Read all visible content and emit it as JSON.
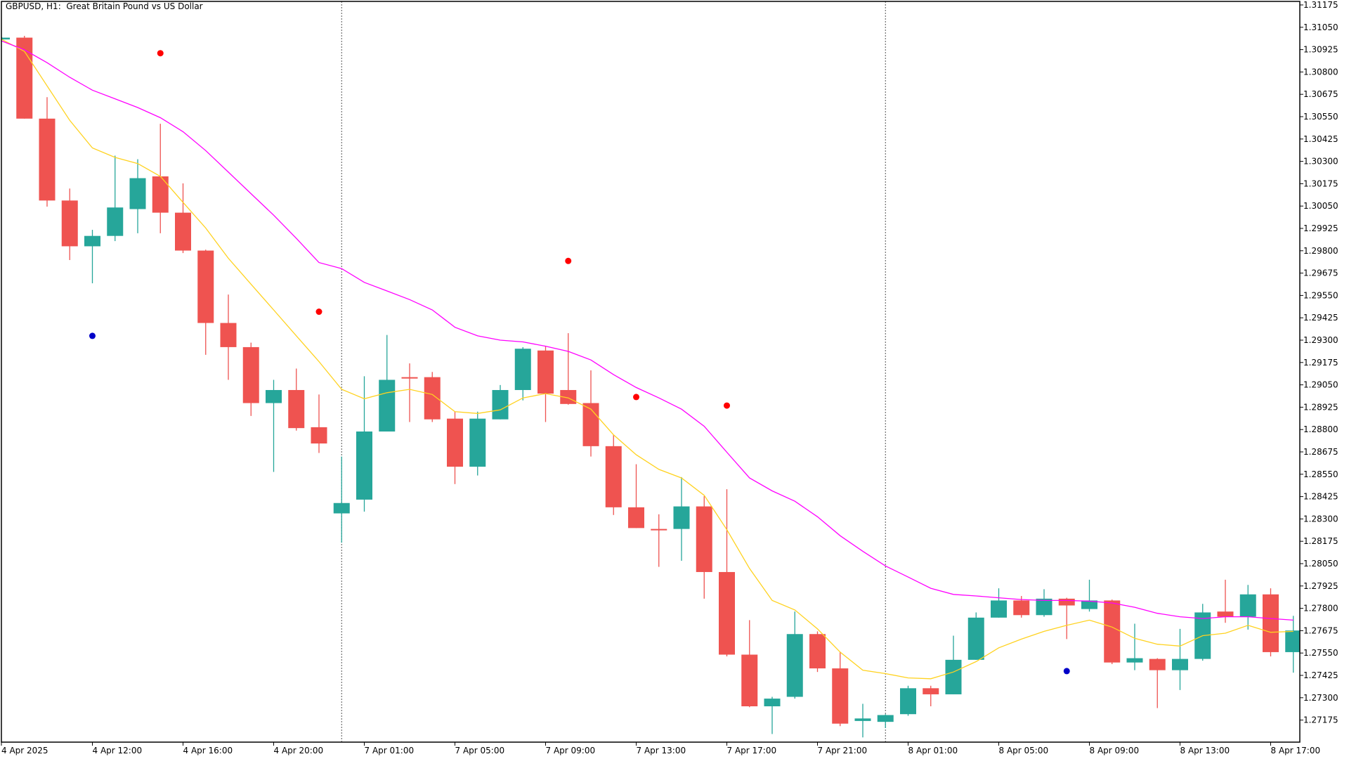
{
  "header": {
    "title": "GBPUSD, H1:  Great Britain Pound vs US Dollar"
  },
  "colors": {
    "bull": "#26a69a",
    "bear": "#ef5350",
    "ma_fast": "#ffd21f",
    "ma_slow": "#ff00ff",
    "dot_red": "#ff0000",
    "dot_blue": "#0000c8",
    "separator": "#555555",
    "axis": "#000000"
  },
  "chart_data": {
    "type": "candlestick",
    "title": "GBPUSD, H1:  Great Britain Pound vs US Dollar",
    "ylim": [
      1.2706,
      1.312
    ],
    "y_ticks": [
      "1.31175",
      "1.31050",
      "1.30925",
      "1.30800",
      "1.30675",
      "1.30550",
      "1.30425",
      "1.30300",
      "1.30175",
      "1.30050",
      "1.29925",
      "1.29800",
      "1.29675",
      "1.29550",
      "1.29425",
      "1.29300",
      "1.29175",
      "1.29050",
      "1.28925",
      "1.28800",
      "1.28675",
      "1.28550",
      "1.28425",
      "1.28300",
      "1.28175",
      "1.28050",
      "1.27925",
      "1.27800",
      "1.27675",
      "1.27550",
      "1.27425",
      "1.27300",
      "1.27175"
    ],
    "x_ticks": [
      {
        "bar": 0,
        "label": "4 Apr 2025"
      },
      {
        "bar": 4,
        "label": "4 Apr 12:00"
      },
      {
        "bar": 8,
        "label": "4 Apr 16:00"
      },
      {
        "bar": 12,
        "label": "4 Apr 20:00"
      },
      {
        "bar": 16,
        "label": "7 Apr 01:00"
      },
      {
        "bar": 20,
        "label": "7 Apr 05:00"
      },
      {
        "bar": 24,
        "label": "7 Apr 09:00"
      },
      {
        "bar": 28,
        "label": "7 Apr 13:00"
      },
      {
        "bar": 32,
        "label": "7 Apr 17:00"
      },
      {
        "bar": 36,
        "label": "7 Apr 21:00"
      },
      {
        "bar": 40,
        "label": "8 Apr 01:00"
      },
      {
        "bar": 44,
        "label": "8 Apr 05:00"
      },
      {
        "bar": 48,
        "label": "8 Apr 09:00"
      },
      {
        "bar": 52,
        "label": "8 Apr 13:00"
      },
      {
        "bar": 56,
        "label": "8 Apr 17:00"
      }
    ],
    "day_separators": [
      15,
      39
    ],
    "ohlc": [
      [
        1.30982,
        1.30995,
        1.3098,
        1.30992
      ],
      [
        1.30992,
        1.31002,
        1.30539,
        1.30539
      ],
      [
        1.30539,
        1.30659,
        1.30047,
        1.30081
      ],
      [
        1.30081,
        1.30148,
        1.29748,
        1.29825
      ],
      [
        1.29825,
        1.29917,
        1.29618,
        1.29883
      ],
      [
        1.29883,
        1.30332,
        1.29854,
        1.30042
      ],
      [
        1.30033,
        1.30312,
        1.29898,
        1.30206
      ],
      [
        1.30216,
        1.3051,
        1.29898,
        1.30013
      ],
      [
        1.30013,
        1.30177,
        1.29787,
        1.29801
      ],
      [
        1.29801,
        1.29806,
        1.29218,
        1.29396
      ],
      [
        1.29396,
        1.29555,
        1.29078,
        1.29261
      ],
      [
        1.29261,
        1.29286,
        1.28876,
        1.28948
      ],
      [
        1.28948,
        1.29078,
        1.28563,
        1.29021
      ],
      [
        1.29021,
        1.29141,
        1.28794,
        1.28808
      ],
      [
        1.28813,
        1.28996,
        1.28669,
        1.28722
      ],
      [
        1.28331,
        1.28649,
        1.28167,
        1.28389
      ],
      [
        1.28408,
        1.29098,
        1.28341,
        1.28789
      ],
      [
        1.28789,
        1.29329,
        1.28789,
        1.29078
      ],
      [
        1.29093,
        1.2917,
        1.28842,
        1.29088
      ],
      [
        1.29093,
        1.29122,
        1.28842,
        1.28857
      ],
      [
        1.28861,
        1.289,
        1.28495,
        1.28592
      ],
      [
        1.28592,
        1.289,
        1.28543,
        1.28861
      ],
      [
        1.28857,
        1.29049,
        1.28857,
        1.29021
      ],
      [
        1.29021,
        1.29261,
        1.28963,
        1.29252
      ],
      [
        1.29242,
        1.29266,
        1.28842,
        1.29001
      ],
      [
        1.29021,
        1.29339,
        1.28939,
        1.28943
      ],
      [
        1.28948,
        1.29131,
        1.28649,
        1.28707
      ],
      [
        1.28707,
        1.2877,
        1.28322,
        1.28365
      ],
      [
        1.28365,
        1.28606,
        1.28249,
        1.28249
      ],
      [
        1.28244,
        1.28326,
        1.28032,
        1.2824
      ],
      [
        1.28244,
        1.28534,
        1.28066,
        1.2837
      ],
      [
        1.2837,
        1.28428,
        1.27854,
        1.28003
      ],
      [
        1.28003,
        1.28466,
        1.27531,
        1.27541
      ],
      [
        1.27541,
        1.27734,
        1.27247,
        1.27252
      ],
      [
        1.27252,
        1.27305,
        1.27097,
        1.27295
      ],
      [
        1.27305,
        1.27782,
        1.27295,
        1.27656
      ],
      [
        1.27656,
        1.27671,
        1.27444,
        1.27464
      ],
      [
        1.27464,
        1.27555,
        1.27141,
        1.27155
      ],
      [
        1.2717,
        1.27266,
        1.27078,
        1.27184
      ],
      [
        1.27165,
        1.27208,
        1.27131,
        1.27203
      ],
      [
        1.27208,
        1.27367,
        1.27199,
        1.27353
      ],
      [
        1.27353,
        1.27367,
        1.27252,
        1.27319
      ],
      [
        1.27319,
        1.27647,
        1.27319,
        1.27512
      ],
      [
        1.27512,
        1.27777,
        1.27512,
        1.27748
      ],
      [
        1.27748,
        1.27912,
        1.27748,
        1.27844
      ],
      [
        1.27844,
        1.27869,
        1.27748,
        1.27762
      ],
      [
        1.27762,
        1.27907,
        1.27753,
        1.27854
      ],
      [
        1.27854,
        1.27859,
        1.27628,
        1.27816
      ],
      [
        1.27796,
        1.2796,
        1.27782,
        1.27844
      ],
      [
        1.27844,
        1.27849,
        1.27488,
        1.27497
      ],
      [
        1.27497,
        1.27714,
        1.27454,
        1.27521
      ],
      [
        1.27517,
        1.27521,
        1.27242,
        1.27454
      ],
      [
        1.27454,
        1.27685,
        1.27343,
        1.27517
      ],
      [
        1.27517,
        1.27825,
        1.27507,
        1.27777
      ],
      [
        1.27782,
        1.2796,
        1.27719,
        1.27753
      ],
      [
        1.27753,
        1.27931,
        1.27681,
        1.27878
      ],
      [
        1.27878,
        1.27912,
        1.27531,
        1.27555
      ],
      [
        1.27555,
        1.27758,
        1.2744,
        1.27676
      ]
    ],
    "ma_fast": [
      1.30982,
      1.30915,
      1.30722,
      1.30529,
      1.30375,
      1.30322,
      1.30288,
      1.30216,
      1.30071,
      1.29927,
      1.29758,
      1.29613,
      1.29469,
      1.29324,
      1.2918,
      1.29025,
      1.28972,
      1.29006,
      1.29025,
      1.28996,
      1.289,
      1.2889,
      1.2891,
      1.28977,
      1.29001,
      1.28977,
      1.28914,
      1.2877,
      1.28659,
      1.28577,
      1.28529,
      1.28432,
      1.2824,
      1.28023,
      1.27844,
      1.27791,
      1.27685,
      1.27555,
      1.27454,
      1.27435,
      1.27411,
      1.27406,
      1.27444,
      1.27502,
      1.27579,
      1.27628,
      1.27671,
      1.27705,
      1.27734,
      1.27695,
      1.27632,
      1.27599,
      1.27589,
      1.27647,
      1.27661,
      1.27705,
      1.27666,
      1.27671
    ],
    "ma_slow": [
      1.30973,
      1.30924,
      1.30852,
      1.3077,
      1.30698,
      1.3065,
      1.30601,
      1.30544,
      1.30466,
      1.3036,
      1.3024,
      1.30119,
      1.29999,
      1.29869,
      1.29734,
      1.297,
      1.29623,
      1.29575,
      1.29527,
      1.29469,
      1.29372,
      1.29324,
      1.293,
      1.2929,
      1.29266,
      1.29237,
      1.29189,
      1.29107,
      1.29035,
      1.28977,
      1.28914,
      1.28818,
      1.28673,
      1.28529,
      1.28457,
      1.28399,
      1.28312,
      1.28206,
      1.28119,
      1.28037,
      1.27975,
      1.27912,
      1.27878,
      1.27869,
      1.27859,
      1.27849,
      1.27844,
      1.27844,
      1.2784,
      1.2783,
      1.27806,
      1.27772,
      1.27753,
      1.27743,
      1.27753,
      1.27753,
      1.27743,
      1.27734
    ],
    "signals": [
      {
        "bar": 7,
        "price": 1.30905,
        "color": "red"
      },
      {
        "bar": 14,
        "price": 1.29459,
        "color": "red"
      },
      {
        "bar": 25,
        "price": 1.29743,
        "color": "red"
      },
      {
        "bar": 28,
        "price": 1.28982,
        "color": "red"
      },
      {
        "bar": 32,
        "price": 1.28934,
        "color": "red"
      },
      {
        "bar": 4,
        "price": 1.29324,
        "color": "blue"
      },
      {
        "bar": 47,
        "price": 1.27449,
        "color": "blue"
      }
    ]
  }
}
